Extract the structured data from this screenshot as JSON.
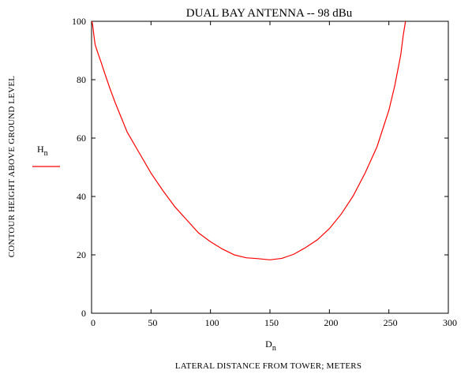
{
  "chart_data": {
    "type": "line",
    "title": "DUAL BAY ANTENNA -- 98 dBu",
    "xlabel": "LATERAL DISTANCE FROM TOWER; METERS",
    "ylabel": "CONTOUR HEIGHT ABOVE GROUND LEVEL",
    "x_variable": {
      "base": "D",
      "subscript": "n"
    },
    "y_variable": {
      "base": "H",
      "subscript": "n"
    },
    "xlim": [
      0,
      300
    ],
    "ylim": [
      0,
      100
    ],
    "x_ticks": [
      0,
      50,
      100,
      150,
      200,
      250,
      300
    ],
    "y_ticks": [
      0,
      20,
      40,
      60,
      80,
      100
    ],
    "grid": false,
    "legend": "left",
    "series": [
      {
        "color": "#ff0000",
        "x": [
          0.3,
          1,
          2,
          3,
          5,
          8,
          10,
          15,
          20,
          25,
          30,
          40,
          50,
          60,
          70,
          80,
          90,
          100,
          110,
          120,
          130,
          140,
          150,
          160,
          170,
          180,
          190,
          200,
          210,
          220,
          230,
          240,
          250,
          255,
          260,
          262,
          264
        ],
        "y": [
          100,
          98.5,
          95,
          92,
          89.5,
          86,
          83.5,
          77.5,
          72,
          67,
          62,
          55,
          48,
          42,
          36.5,
          32,
          27.5,
          24.5,
          22,
          20,
          19,
          18.7,
          18.3,
          18.8,
          20.2,
          22.5,
          25.2,
          29,
          34,
          40.2,
          48,
          57,
          69.5,
          78,
          88.5,
          95,
          100
        ]
      }
    ]
  }
}
